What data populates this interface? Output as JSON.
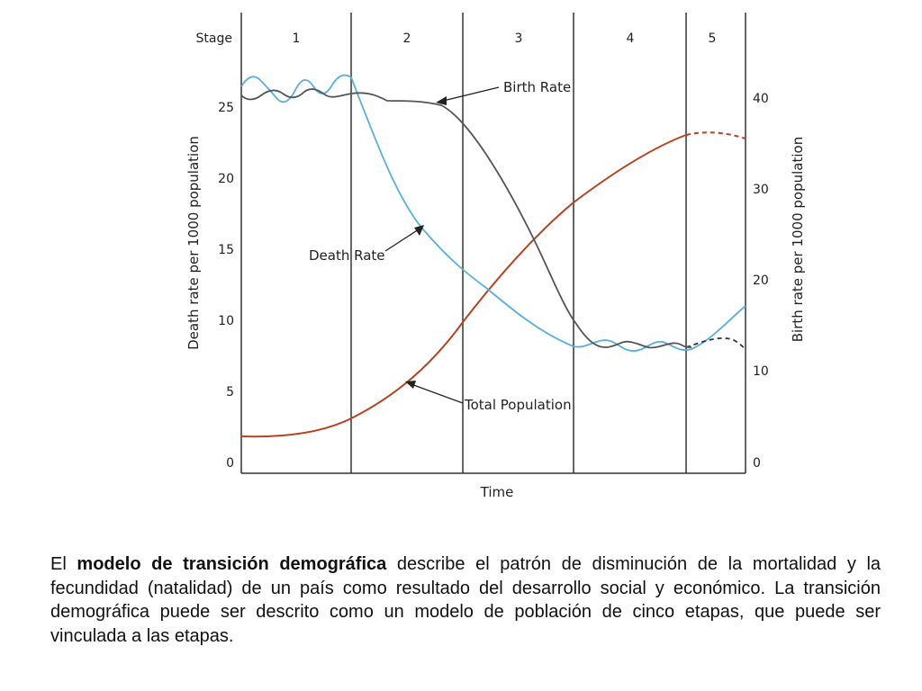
{
  "chart_data": {
    "type": "line",
    "stage_label": "Stage",
    "stages": [
      "1",
      "2",
      "3",
      "4",
      "5"
    ],
    "xlabel": "Time",
    "ylabel_left": "Death rate per 1000 population",
    "ylabel_right": "Birth rate per 1000 population",
    "left_ticks": [
      "0",
      "5",
      "10",
      "15",
      "20",
      "25"
    ],
    "right_ticks": [
      "0",
      "10",
      "20",
      "30",
      "40"
    ],
    "ylim_left": [
      0,
      30
    ],
    "ylim_right": [
      0,
      49
    ],
    "series": [
      {
        "name": "Birth Rate",
        "color": "#555555"
      },
      {
        "name": "Death Rate",
        "color": "#5aaee0"
      },
      {
        "name": "Total Population",
        "color": "#b8411e"
      }
    ],
    "annotations": [
      "Birth Rate",
      "Death Rate",
      "Total Population"
    ]
  },
  "caption": {
    "prefix": "El ",
    "bold": "modelo de transición demográfica",
    "rest": " describe el patrón de disminución de la mortalidad y la fecundidad (natalidad) de un país como resultado del desarrollo social y económico. La transición demográfica puede ser descrito como un modelo de población de cinco etapas, que puede ser vinculada a las etapas."
  }
}
